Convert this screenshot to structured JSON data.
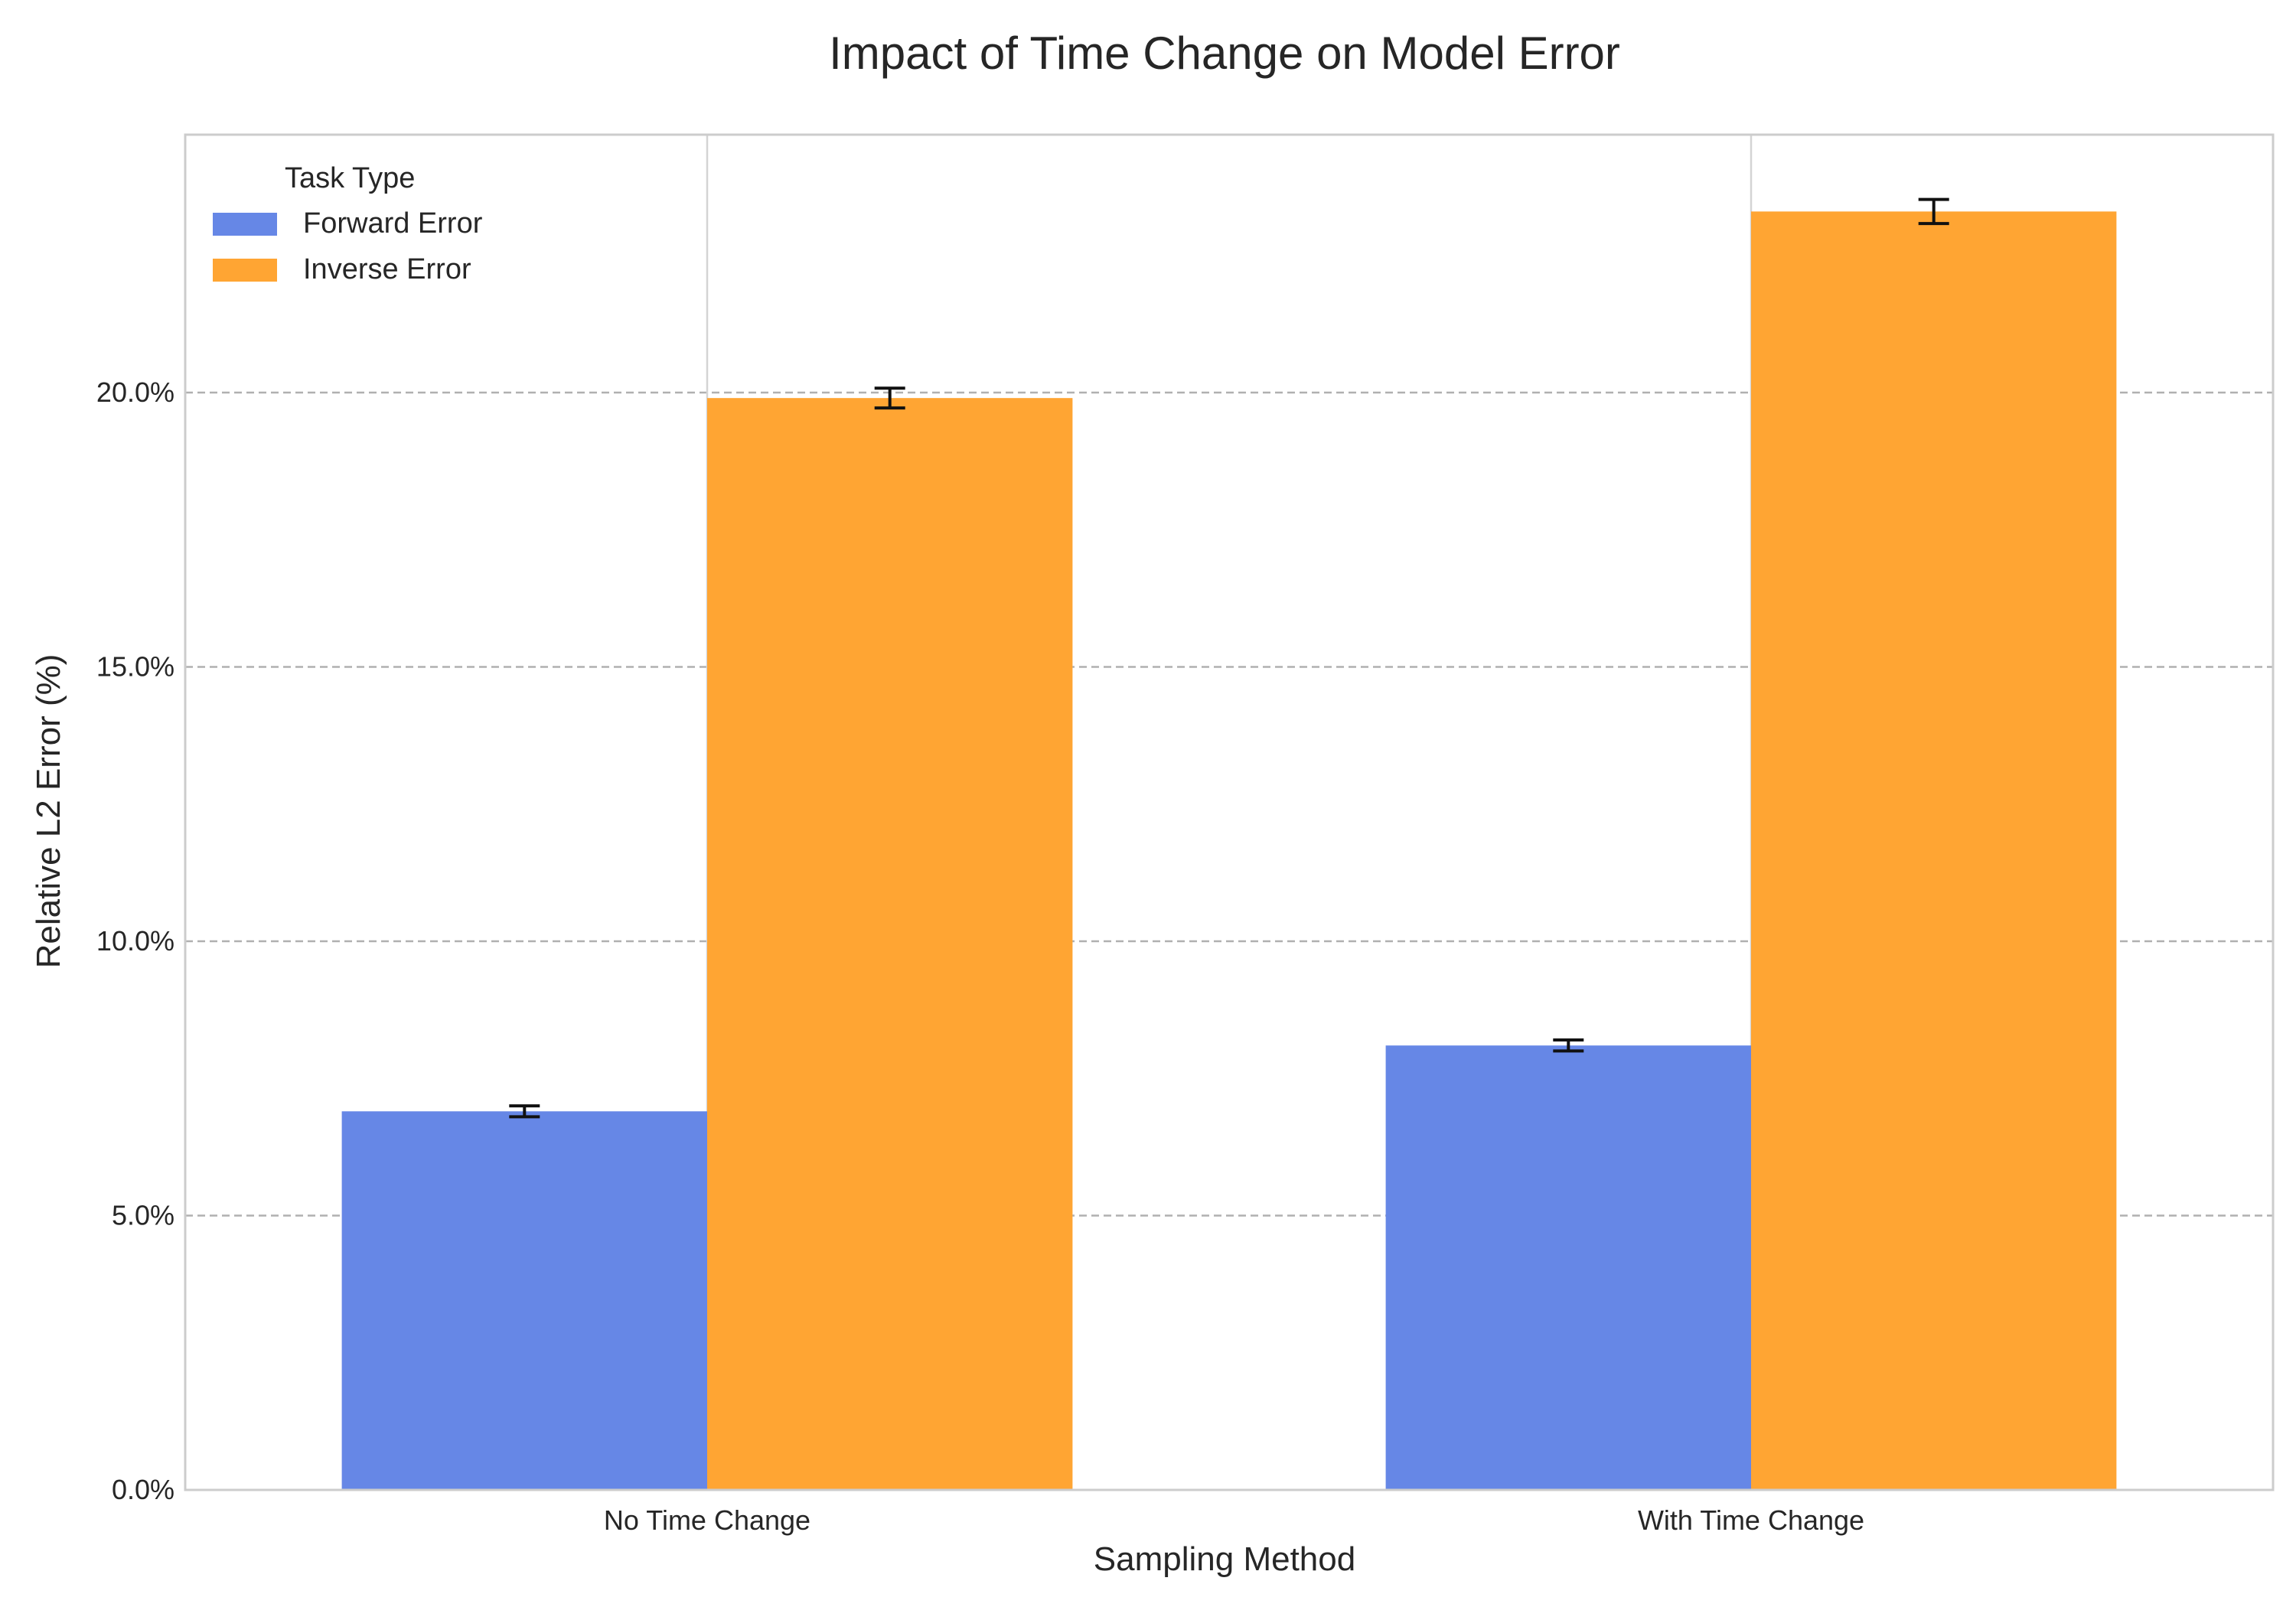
{
  "chart_data": {
    "type": "bar",
    "title": "Impact of Time Change on Model Error",
    "xlabel": "Sampling Method",
    "ylabel": "Relative L2 Error (%)",
    "categories": [
      "No Time Change",
      "With Time Change"
    ],
    "series": [
      {
        "name": "Forward Error",
        "values": [
          6.9,
          8.1
        ],
        "errors": [
          0.1,
          0.1
        ],
        "color": "#6687e6"
      },
      {
        "name": "Inverse Error",
        "values": [
          19.9,
          23.3
        ],
        "errors": [
          0.18,
          0.22
        ],
        "color": "#ffa533"
      }
    ],
    "ylim": [
      0,
      24.7
    ],
    "yticks": [
      0,
      5,
      10,
      15,
      20
    ],
    "ytick_labels": [
      "0.0%",
      "5.0%",
      "10.0%",
      "15.0%",
      "20.0%"
    ],
    "legend": {
      "title": "Task Type",
      "placement": "top-left"
    },
    "grid": {
      "y": "dashed",
      "x": "solid"
    }
  }
}
